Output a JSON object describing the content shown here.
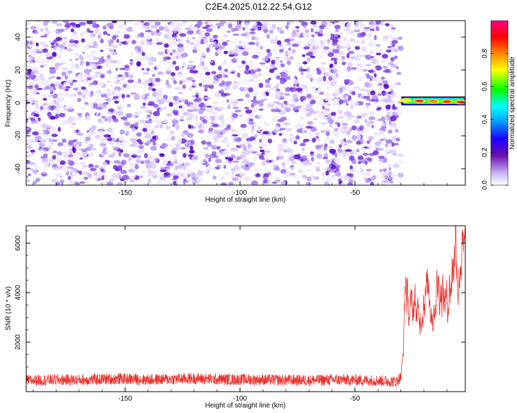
{
  "chart_data": [
    {
      "type": "heatmap",
      "title": "C2E4.2025.012.22.54.G12",
      "xlabel": "Height of straight line (km)",
      "ylabel": "Frequency (Hz)",
      "xlim": [
        -193,
        -2
      ],
      "ylim": [
        -50,
        50
      ],
      "x_ticks": [
        -150,
        -100,
        -50
      ],
      "y_ticks": [
        -40,
        -20,
        0,
        20,
        40
      ],
      "colorbar": {
        "label": "Normalized spectral amplitude",
        "range": [
          0,
          1
        ],
        "ticks": [
          0.0,
          0.2,
          0.4,
          0.6,
          0.8
        ],
        "tick_labels": [
          "0.0",
          "0.2",
          "0.4",
          "0.6",
          "0.8"
        ],
        "colormap": [
          "#ffffff",
          "#b8a6f0",
          "#6a0dad",
          "#1a00ff",
          "#00ffff",
          "#00ff00",
          "#ffff00",
          "#ff8800",
          "#ff0000",
          "#ff0080"
        ]
      },
      "noise_region": {
        "x_range": [
          -193,
          -30
        ],
        "description_values": {
          "amplitude_range": [
            0.0,
            0.2
          ]
        }
      },
      "signal_tone": {
        "x_range": [
          -30,
          -2
        ],
        "frequency_hz": [
          1.5,
          1.2,
          1.0,
          0.8,
          0.5
        ],
        "x": [
          -28,
          -22,
          -16,
          -10,
          -4
        ],
        "amplitude": [
          0.6,
          1.0,
          0.8,
          0.95,
          1.0
        ]
      }
    },
    {
      "type": "line",
      "title": "",
      "xlabel": "Height of straight line (km)",
      "ylabel": "SNR (10 * v/v)",
      "xlim": [
        -193,
        -2
      ],
      "ylim": [
        0,
        6700
      ],
      "x_ticks": [
        -150,
        -100,
        -50
      ],
      "y_ticks": [
        2000,
        4000,
        6000
      ],
      "grid": false,
      "series": [
        {
          "color": "#e8322c",
          "x": [
            -193,
            -180,
            -170,
            -160,
            -150,
            -140,
            -130,
            -120,
            -110,
            -100,
            -90,
            -80,
            -70,
            -60,
            -50,
            -40,
            -32,
            -30,
            -29,
            -28,
            -27,
            -26,
            -24,
            -22,
            -20,
            -18,
            -16,
            -14,
            -12,
            -10,
            -8,
            -6,
            -5,
            -4,
            -2
          ],
          "values": [
            450,
            480,
            470,
            500,
            520,
            480,
            510,
            530,
            500,
            490,
            480,
            470,
            460,
            480,
            470,
            450,
            400,
            600,
            1500,
            4700,
            3400,
            3200,
            3600,
            2800,
            3800,
            4200,
            3000,
            4400,
            4000,
            3600,
            4500,
            6500,
            4200,
            5500,
            5400
          ]
        }
      ]
    }
  ]
}
